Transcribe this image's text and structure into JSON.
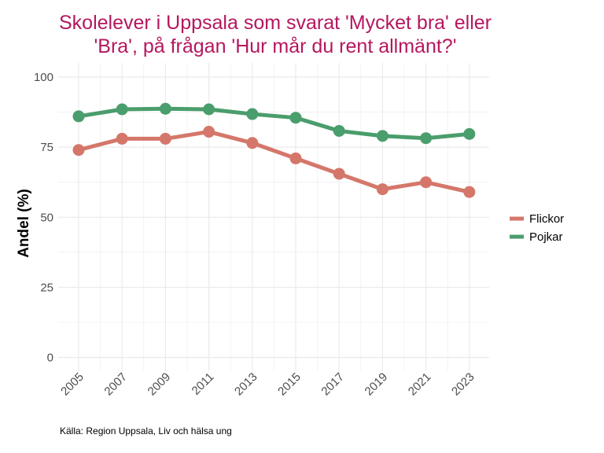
{
  "colors": {
    "title": "#b5175e",
    "flickor": "#d4776a",
    "pojkar": "#4a9d6c",
    "grid": "#ebebeb"
  },
  "title_lines": [
    "Skolelever i Uppsala som svarat 'Mycket bra' eller",
    "'Bra', på frågan 'Hur mår du rent allmänt?'"
  ],
  "caption": "Källa: Region Uppsala, Liv och hälsa ung",
  "chart_data": {
    "type": "line",
    "title": "Skolelever i Uppsala som svarat 'Mycket bra' eller 'Bra', på frågan 'Hur mår du rent allmänt?'",
    "xlabel": "",
    "ylabel": "Andel (%)",
    "x": [
      "2005",
      "2007",
      "2009",
      "2011",
      "2013",
      "2015",
      "2017",
      "2019",
      "2021",
      "2023"
    ],
    "ylim": [
      0,
      100
    ],
    "yticks": [
      0,
      25,
      50,
      75,
      100
    ],
    "grid": true,
    "legend_position": "right",
    "series": [
      {
        "name": "Flickor",
        "color": "#d4776a",
        "values": [
          74,
          78,
          78,
          80.5,
          76.5,
          71,
          65.5,
          60,
          62.5,
          59
        ]
      },
      {
        "name": "Pojkar",
        "color": "#4a9d6c",
        "values": [
          86,
          88.5,
          88.7,
          88.5,
          86.8,
          85.5,
          80.8,
          79,
          78.2,
          79.7
        ]
      }
    ]
  }
}
